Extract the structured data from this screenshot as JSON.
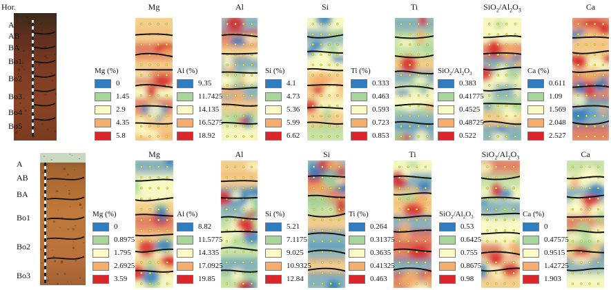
{
  "header": {
    "horizon_label": "Hor."
  },
  "colors": {
    "class1": "#2f7fc0",
    "class2": "#a6d69a",
    "class3": "#fdfbc8",
    "class4": "#f7ae6c",
    "class5": "#d8262a",
    "point_dot": "#e8e84a",
    "boundary_line": "#111111"
  },
  "profiles": [
    {
      "id": "top",
      "horizons": [
        "A",
        "AB",
        "BA",
        "Bo1",
        "Bo2",
        "Bo3",
        "Bo4",
        "Bo5"
      ],
      "panels": [
        {
          "title": "Mg",
          "legend_title": "Mg (%)",
          "legend_values": [
            "0",
            "1.45",
            "2.9",
            "4.35",
            "5.8"
          ]
        },
        {
          "title": "Al",
          "legend_title": "Al (%)",
          "legend_values": [
            "9.35",
            "11.7425",
            "14.135",
            "16.5275",
            "18.92"
          ]
        },
        {
          "title": "Si",
          "legend_title": "Si (%)",
          "legend_values": [
            "4.1",
            "4.73",
            "5.36",
            "5.99",
            "6.62"
          ]
        },
        {
          "title": "Ti",
          "legend_title": "Ti (%)",
          "legend_values": [
            "0.333",
            "0.463",
            "0.593",
            "0.723",
            "0.853"
          ]
        },
        {
          "title": "SiO2/Al2O3",
          "legend_title": "SiO2/Al2O3",
          "legend_values": [
            "0.383",
            "0.41775",
            "0.4525",
            "0.48725",
            "0.522"
          ]
        },
        {
          "title": "Ca",
          "legend_title": "Ca (%)",
          "legend_values": [
            "0.611",
            "1.09",
            "1.569",
            "2.048",
            "2.527"
          ]
        }
      ]
    },
    {
      "id": "bottom",
      "horizons": [
        "A",
        "AB",
        "BA",
        "Bo1",
        "Bo2",
        "Bo3"
      ],
      "panels": [
        {
          "title": "Mg",
          "legend_title": "Mg (%)",
          "legend_values": [
            "0",
            "0.8975",
            "1.795",
            "2.6925",
            "3.59"
          ]
        },
        {
          "title": "Al",
          "legend_title": "Al (%)",
          "legend_values": [
            "8.82",
            "11.5775",
            "14.335",
            "17.0925",
            "19.85"
          ]
        },
        {
          "title": "Si",
          "legend_title": "Si (%)",
          "legend_values": [
            "5.21",
            "7.1175",
            "9.025",
            "10.9325",
            "12.84"
          ]
        },
        {
          "title": "Ti",
          "legend_title": "Ti (%)",
          "legend_values": [
            "0.264",
            "0.31375",
            "0.3635",
            "0.41325",
            "0.463"
          ]
        },
        {
          "title": "SiO2/Al2O3",
          "legend_title": "SiO2/Al2O3",
          "legend_values": [
            "0.53",
            "0.6425",
            "0.755",
            "0.8675",
            "0.98"
          ]
        },
        {
          "title": "Ca",
          "legend_title": "Ca (%)",
          "legend_values": [
            "0",
            "0.47575",
            "0.9515",
            "1.42725",
            "1.903"
          ]
        }
      ]
    }
  ]
}
